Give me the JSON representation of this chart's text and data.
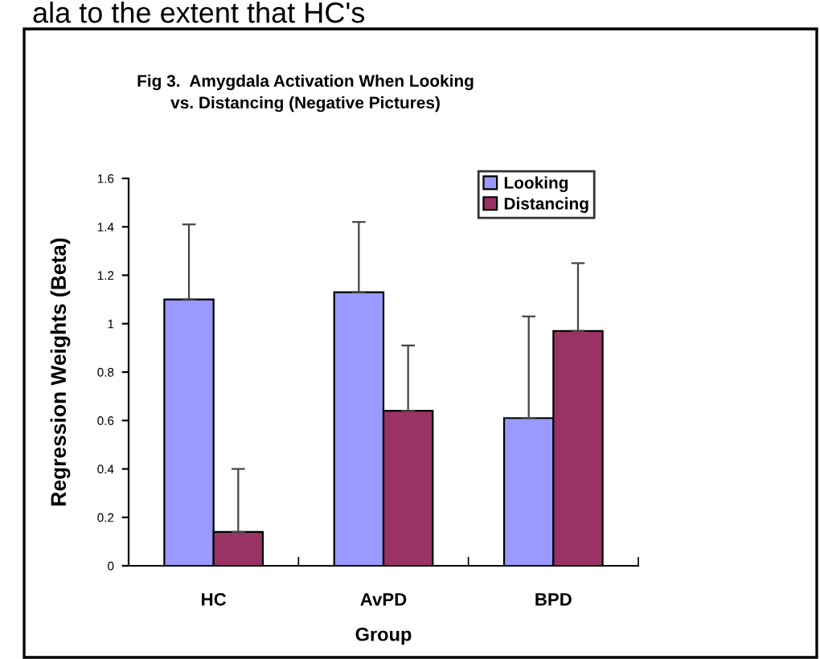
{
  "chart_data": {
    "type": "bar",
    "title": "Fig 3.  Amygdala Activation When Looking\nvs. Distancing (Negative Pictures)",
    "xlabel": "Group",
    "ylabel": "Regression Weights (Beta)",
    "annotations": [
      "ala to the extent that HC's"
    ],
    "categories": [
      "HC",
      "AvPD",
      "BPD"
    ],
    "series": [
      {
        "name": "Looking",
        "color": "#9999ff",
        "values": [
          1.1,
          1.13,
          0.61
        ],
        "errors": [
          0.31,
          0.29,
          0.42
        ]
      },
      {
        "name": "Distancing",
        "color": "#993366",
        "values": [
          0.14,
          0.64,
          0.97
        ],
        "errors": [
          0.26,
          0.27,
          0.28
        ]
      }
    ],
    "ylim": [
      0,
      1.6
    ],
    "yticks": [
      0,
      0.2,
      0.4,
      0.6,
      0.8,
      1,
      1.2,
      1.4,
      1.6
    ],
    "grid": false,
    "legend": "top right"
  }
}
